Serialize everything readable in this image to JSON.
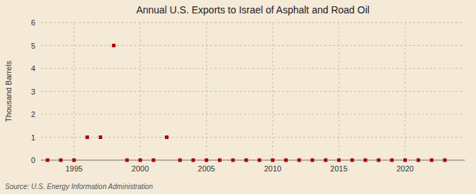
{
  "chart_data": {
    "type": "scatter",
    "title": "Annual U.S. Exports to Israel of Asphalt and Road Oil",
    "ylabel": "Thousand Barrels",
    "annotations": [
      "Source: U.S. Energy Information Administration"
    ],
    "x": [
      1993,
      1994,
      1995,
      1996,
      1997,
      1998,
      1999,
      2000,
      2001,
      2002,
      2003,
      2004,
      2005,
      2006,
      2007,
      2008,
      2009,
      2010,
      2011,
      2012,
      2013,
      2014,
      2015,
      2016,
      2017,
      2018,
      2019,
      2020,
      2021,
      2022,
      2023
    ],
    "values": [
      0,
      0,
      0,
      1,
      1,
      5,
      0,
      0,
      0,
      1,
      0,
      0,
      0,
      0,
      0,
      0,
      0,
      0,
      0,
      0,
      0,
      0,
      0,
      0,
      0,
      0,
      0,
      0,
      0,
      0,
      0
    ],
    "color": "#aa0000",
    "marker": "square",
    "xlim": [
      1992.5,
      2024.5
    ],
    "ylim": [
      0,
      6
    ],
    "xticks": [
      1995,
      2000,
      2005,
      2010,
      2015,
      2020
    ],
    "yticks": [
      0,
      1,
      2,
      3,
      4,
      5,
      6
    ],
    "grid": true
  }
}
